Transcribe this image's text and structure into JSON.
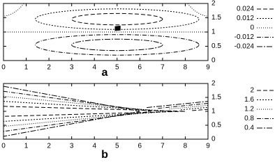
{
  "chart_data": [
    {
      "type": "contour",
      "label": "a",
      "xlim": [
        0,
        9
      ],
      "ylim": [
        0,
        2
      ],
      "xticks": [
        0,
        1,
        2,
        3,
        4,
        5,
        6,
        7,
        8,
        9
      ],
      "yticks": [
        0,
        0.5,
        1,
        1.5,
        2
      ],
      "series": [
        {
          "name": "0.024",
          "level": 0.024,
          "color": "#000000",
          "dash": "6,3"
        },
        {
          "name": "0.012",
          "level": 0.012,
          "color": "#000000",
          "dash": "2,2"
        },
        {
          "name": "0",
          "level": 0,
          "color": "#000000",
          "dash": "1,2"
        },
        {
          "name": "-0.012",
          "level": -0.012,
          "color": "#000000",
          "dash": "6,2,1,2"
        },
        {
          "name": "-0.024",
          "level": -0.024,
          "color": "#000000",
          "dash": "8,2,2,2"
        }
      ]
    },
    {
      "type": "contour",
      "label": "b",
      "xlim": [
        0,
        9
      ],
      "ylim": [
        0,
        2
      ],
      "xticks": [
        0,
        1,
        2,
        3,
        4,
        5,
        6,
        7,
        8,
        9
      ],
      "yticks": [
        0,
        0.5,
        1,
        1.5,
        2
      ],
      "series": [
        {
          "name": "2",
          "level": 2,
          "color": "#000000",
          "dash": "6,3"
        },
        {
          "name": "1.6",
          "level": 1.6,
          "color": "#000000",
          "dash": "2,2"
        },
        {
          "name": "1.2",
          "level": 1.2,
          "color": "#000000",
          "dash": "1,2"
        },
        {
          "name": "0.8",
          "level": 0.8,
          "color": "#000000",
          "dash": "6,2,1,2"
        },
        {
          "name": "0.4",
          "level": 0.4,
          "color": "#000000",
          "dash": "8,2,2,2"
        }
      ]
    }
  ]
}
